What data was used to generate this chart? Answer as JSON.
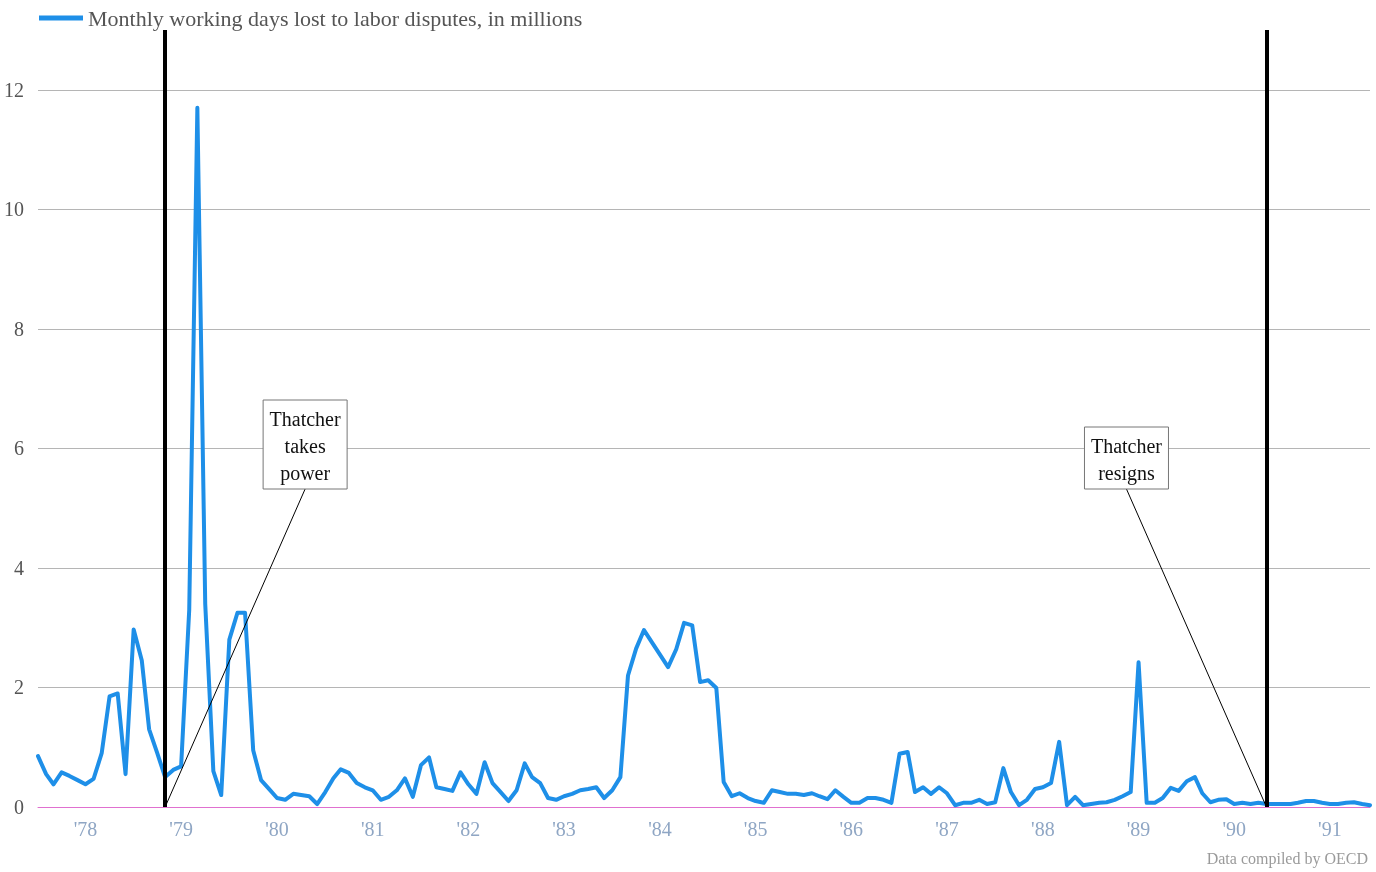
{
  "chart_data": {
    "type": "line",
    "legend": "top left",
    "grid": "y",
    "marker": "none",
    "line_style": "solid",
    "x": [
      "1978-01",
      "1978-02",
      "1978-03",
      "1978-04",
      "1978-05",
      "1978-06",
      "1978-07",
      "1978-08",
      "1978-09",
      "1978-10",
      "1978-11",
      "1978-12",
      "1979-01",
      "1979-02",
      "1979-03",
      "1979-04",
      "1979-05",
      "1979-06",
      "1979-07",
      "1979-08",
      "1979-09",
      "1979-10",
      "1979-11",
      "1979-12",
      "1980-01",
      "1980-02",
      "1980-03",
      "1980-04",
      "1980-05",
      "1980-06",
      "1980-07",
      "1980-08",
      "1980-09",
      "1980-10",
      "1980-11",
      "1980-12",
      "1981-01",
      "1981-02",
      "1981-03",
      "1981-04",
      "1981-05",
      "1981-06",
      "1981-07",
      "1981-08",
      "1981-09",
      "1981-10",
      "1981-11",
      "1981-12",
      "1982-01",
      "1982-02",
      "1982-03",
      "1982-04",
      "1982-05",
      "1982-06",
      "1982-07",
      "1982-08",
      "1982-09",
      "1982-10",
      "1982-11",
      "1982-12",
      "1983-01",
      "1983-02",
      "1983-03",
      "1983-04",
      "1983-05",
      "1983-06",
      "1983-07",
      "1983-08",
      "1983-09",
      "1983-10",
      "1983-11",
      "1983-12",
      "1984-01",
      "1984-02",
      "1984-03",
      "1984-04",
      "1984-05",
      "1984-06",
      "1984-07",
      "1984-08",
      "1984-09",
      "1984-10",
      "1984-11",
      "1984-12",
      "1985-01",
      "1985-02",
      "1985-03",
      "1985-04",
      "1985-05",
      "1985-06",
      "1985-07",
      "1985-08",
      "1985-09",
      "1985-10",
      "1985-11",
      "1985-12",
      "1986-01",
      "1986-02",
      "1986-03",
      "1986-04",
      "1986-05",
      "1986-06",
      "1986-07",
      "1986-08",
      "1986-09",
      "1986-10",
      "1986-11",
      "1986-12",
      "1987-01",
      "1987-02",
      "1987-03",
      "1987-04",
      "1987-05",
      "1987-06",
      "1987-07",
      "1987-08",
      "1987-09",
      "1987-10",
      "1987-11",
      "1987-12",
      "1988-01",
      "1988-02",
      "1988-03",
      "1988-04",
      "1988-05",
      "1988-06",
      "1988-07",
      "1988-08",
      "1988-09",
      "1988-10",
      "1988-11",
      "1988-12",
      "1989-01",
      "1989-02",
      "1989-03",
      "1989-04",
      "1989-05",
      "1989-06",
      "1989-07",
      "1989-08",
      "1989-09",
      "1989-10",
      "1989-11",
      "1989-12",
      "1990-01",
      "1990-02",
      "1990-03",
      "1990-04",
      "1990-05",
      "1990-06",
      "1990-07",
      "1990-08",
      "1990-09",
      "1990-10",
      "1990-11",
      "1990-12",
      "1991-01",
      "1991-02",
      "1991-03",
      "1991-04",
      "1991-05",
      "1991-06",
      "1991-07",
      "1991-08",
      "1991-09",
      "1991-10",
      "1991-11",
      "1991-12"
    ],
    "series": [
      {
        "name": "Monthly working days lost to labor disputes, in millions",
        "color": "#1e8fe8",
        "values": [
          0.85,
          0.55,
          0.38,
          0.58,
          0.52,
          0.45,
          0.38,
          0.47,
          0.9,
          1.85,
          1.9,
          0.55,
          2.97,
          2.45,
          1.3,
          0.9,
          0.5,
          0.62,
          0.68,
          3.3,
          11.7,
          3.4,
          0.6,
          0.2,
          2.8,
          3.25,
          3.25,
          0.95,
          0.45,
          0.3,
          0.15,
          0.12,
          0.22,
          0.2,
          0.18,
          0.05,
          0.25,
          0.48,
          0.63,
          0.57,
          0.4,
          0.33,
          0.28,
          0.12,
          0.17,
          0.28,
          0.48,
          0.17,
          0.7,
          0.83,
          0.33,
          0.3,
          0.27,
          0.58,
          0.38,
          0.22,
          0.75,
          0.4,
          0.25,
          0.1,
          0.28,
          0.73,
          0.5,
          0.4,
          0.15,
          0.12,
          0.18,
          0.22,
          0.28,
          0.3,
          0.33,
          0.15,
          0.28,
          0.5,
          2.2,
          2.65,
          2.96,
          2.75,
          2.55,
          2.34,
          2.64,
          3.08,
          3.04,
          2.09,
          2.12,
          1.99,
          0.42,
          0.18,
          0.23,
          0.15,
          0.1,
          0.07,
          0.28,
          0.25,
          0.22,
          0.22,
          0.2,
          0.23,
          0.18,
          0.13,
          0.28,
          0.17,
          0.07,
          0.07,
          0.15,
          0.15,
          0.12,
          0.07,
          0.89,
          0.92,
          0.25,
          0.33,
          0.22,
          0.33,
          0.23,
          0.03,
          0.07,
          0.07,
          0.12,
          0.05,
          0.08,
          0.65,
          0.25,
          0.03,
          0.12,
          0.3,
          0.33,
          0.4,
          1.09,
          0.03,
          0.17,
          0.03,
          0.05,
          0.07,
          0.08,
          0.12,
          0.18,
          0.25,
          2.42,
          0.07,
          0.07,
          0.15,
          0.32,
          0.27,
          0.43,
          0.5,
          0.23,
          0.08,
          0.12,
          0.13,
          0.05,
          0.07,
          0.05,
          0.07,
          0.05,
          0.05,
          0.05,
          0.05,
          0.07,
          0.1,
          0.1,
          0.07,
          0.05,
          0.05,
          0.07,
          0.08,
          0.05,
          0.03
        ]
      }
    ],
    "xlim": [
      "1978-01",
      "1991-12"
    ],
    "xticks": [
      {
        "value": "1978-07",
        "label": "'78"
      },
      {
        "value": "1979-07",
        "label": "'79"
      },
      {
        "value": "1980-07",
        "label": "'80"
      },
      {
        "value": "1981-07",
        "label": "'81"
      },
      {
        "value": "1982-07",
        "label": "'82"
      },
      {
        "value": "1983-07",
        "label": "'83"
      },
      {
        "value": "1984-07",
        "label": "'84"
      },
      {
        "value": "1985-07",
        "label": "'85"
      },
      {
        "value": "1986-07",
        "label": "'86"
      },
      {
        "value": "1987-07",
        "label": "'87"
      },
      {
        "value": "1988-07",
        "label": "'88"
      },
      {
        "value": "1989-07",
        "label": "'89"
      },
      {
        "value": "1990-07",
        "label": "'90"
      },
      {
        "value": "1991-07",
        "label": "'91"
      }
    ],
    "ylim": [
      0,
      13
    ],
    "yticks": [
      0,
      2,
      4,
      6,
      8,
      10,
      12
    ],
    "ref_lines": [
      {
        "axis": "x",
        "value": "1979-05",
        "label": "Thatcher takes power",
        "color": "#000000"
      },
      {
        "axis": "x",
        "value": "1990-11",
        "label": "Thatcher resigns",
        "color": "#000000"
      }
    ],
    "annotations": [
      "Data compiled by OECD"
    ]
  }
}
